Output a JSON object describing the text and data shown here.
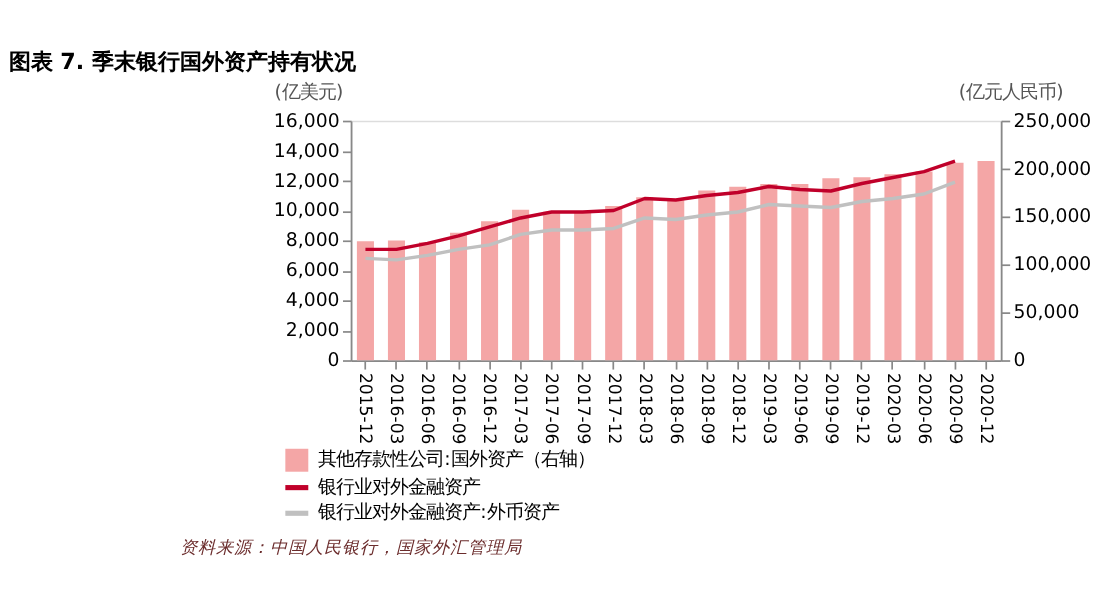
{
  "chart_data": {
    "type": "bar",
    "title": "图表 7. 季末银行国外资产持有状况",
    "ylabel": "(亿美元)",
    "y2label": "(亿元人民币)",
    "categories": [
      "2015-12",
      "2016-03",
      "2016-06",
      "2016-09",
      "2016-12",
      "2017-03",
      "2017-06",
      "2017-09",
      "2017-12",
      "2018-03",
      "2018-06",
      "2018-09",
      "2018-12",
      "2019-03",
      "2019-06",
      "2019-09",
      "2019-12",
      "2020-03",
      "2020-06",
      "2020-09",
      "2020-12"
    ],
    "series": [
      {
        "name": "其他存款性公司:国外资产（右轴）",
        "axis": "y2",
        "color": "#f4a6a6",
        "values": [
          124000,
          125000,
          123000,
          133000,
          145000,
          157000,
          155000,
          155000,
          161000,
          170000,
          167000,
          177000,
          181000,
          184000,
          184000,
          190000,
          191000,
          194000,
          197000,
          206000,
          208000
        ]
      },
      {
        "name": "银行业对外金融资产",
        "type": "line",
        "color": "#c0002a",
        "values": [
          7400,
          7400,
          7800,
          8300,
          8900,
          9500,
          9900,
          9900,
          10000,
          10800,
          10700,
          11000,
          11200,
          11600,
          11400,
          11300,
          11800,
          12200,
          12600,
          13300,
          null
        ]
      },
      {
        "name": "银行业对外金融资产:外币资产",
        "type": "line",
        "color": "#c0c0c0",
        "values": [
          6800,
          6700,
          7000,
          7400,
          7700,
          8400,
          8700,
          8700,
          8800,
          9500,
          9400,
          9700,
          9900,
          10400,
          10300,
          10200,
          10600,
          10800,
          11100,
          11900,
          null
        ]
      }
    ],
    "ylim": [
      0,
      16000
    ],
    "yticks": [
      0,
      {
        "value": 2000,
        "label": "2,000"
      },
      {
        "value": 4000,
        "label": "4,000"
      },
      {
        "value": 6000,
        "label": "6,000"
      },
      {
        "value": 8000,
        "label": "8,000"
      },
      {
        "value": 10000,
        "label": "10,000"
      },
      {
        "value": 12000,
        "label": "12,000"
      },
      {
        "value": 14000,
        "label": "14,000"
      },
      {
        "value": 16000,
        "label": "16,000"
      }
    ],
    "y2lim": [
      0,
      250000
    ],
    "y2ticks": [
      0,
      {
        "value": 50000,
        "label": "50,000"
      },
      {
        "value": 100000,
        "label": "100,000"
      },
      {
        "value": 150000,
        "label": "150,000"
      },
      {
        "value": 200000,
        "label": "200,000"
      },
      {
        "value": 250000,
        "label": "250,000"
      }
    ],
    "grid": false,
    "legend": "bottom",
    "annotations": [
      "资料来源：中国人民银行，国家外汇管理局"
    ]
  }
}
